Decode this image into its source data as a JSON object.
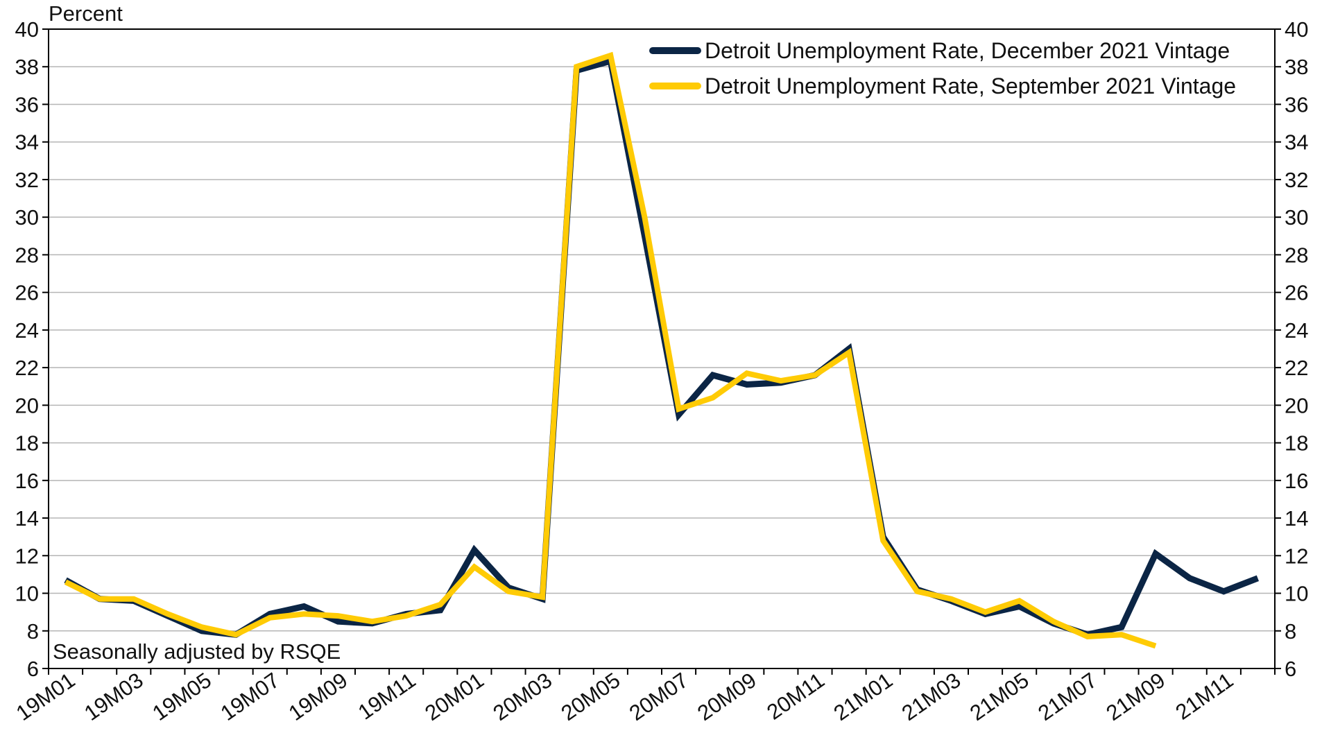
{
  "chart_data": {
    "type": "line",
    "y_unit_label": "Percent",
    "note": "Seasonally adjusted by RSQE",
    "ylim": [
      6,
      40
    ],
    "y_ticks": [
      6,
      8,
      10,
      12,
      14,
      16,
      18,
      20,
      22,
      24,
      26,
      28,
      30,
      32,
      34,
      36,
      38,
      40
    ],
    "y_tick_labels": [
      "6",
      "8",
      "10",
      "12",
      "14",
      "16",
      "18",
      "20",
      "22",
      "24",
      "26",
      "28",
      "30",
      "32",
      "34",
      "36",
      "38",
      "40"
    ],
    "categories": [
      "19M01",
      "19M02",
      "19M03",
      "19M04",
      "19M05",
      "19M06",
      "19M07",
      "19M08",
      "19M09",
      "19M10",
      "19M11",
      "19M12",
      "20M01",
      "20M02",
      "20M03",
      "20M04",
      "20M05",
      "20M06",
      "20M07",
      "20M08",
      "20M09",
      "20M10",
      "20M11",
      "20M12",
      "21M01",
      "21M02",
      "21M03",
      "21M04",
      "21M05",
      "21M06",
      "21M07",
      "21M08",
      "21M09",
      "21M10",
      "21M11",
      "21M12"
    ],
    "x_tick_labels": [
      "19M01",
      "19M03",
      "19M05",
      "19M07",
      "19M09",
      "19M11",
      "20M01",
      "20M03",
      "20M05",
      "20M07",
      "20M09",
      "20M11",
      "21M01",
      "21M03",
      "21M05",
      "21M07",
      "21M09",
      "21M11"
    ],
    "grid": "horizontal",
    "legend_position": "top-right",
    "series": [
      {
        "name": "Detroit Unemployment Rate, December 2021 Vintage",
        "color": "#0b2545",
        "values": [
          10.7,
          9.7,
          9.6,
          8.8,
          8.0,
          7.8,
          8.9,
          9.3,
          8.5,
          8.4,
          8.9,
          9.1,
          12.3,
          10.3,
          9.7,
          37.8,
          38.3,
          29.0,
          19.5,
          21.6,
          21.1,
          21.2,
          21.6,
          23.0,
          13.0,
          10.2,
          9.6,
          8.9,
          9.3,
          8.4,
          7.8,
          8.2,
          12.1,
          10.8,
          10.1,
          10.8
        ]
      },
      {
        "name": "Detroit Unemployment Rate, September 2021 Vintage",
        "color": "#ffcb05",
        "values": [
          10.6,
          9.7,
          9.7,
          8.9,
          8.2,
          7.8,
          8.7,
          8.9,
          8.8,
          8.5,
          8.8,
          9.4,
          11.4,
          10.1,
          9.8,
          38.0,
          38.6,
          30.0,
          19.8,
          20.4,
          21.7,
          21.3,
          21.6,
          22.8,
          12.8,
          10.1,
          9.7,
          9.0,
          9.6,
          8.5,
          7.7,
          7.8,
          7.2,
          null,
          null,
          null
        ]
      }
    ]
  }
}
